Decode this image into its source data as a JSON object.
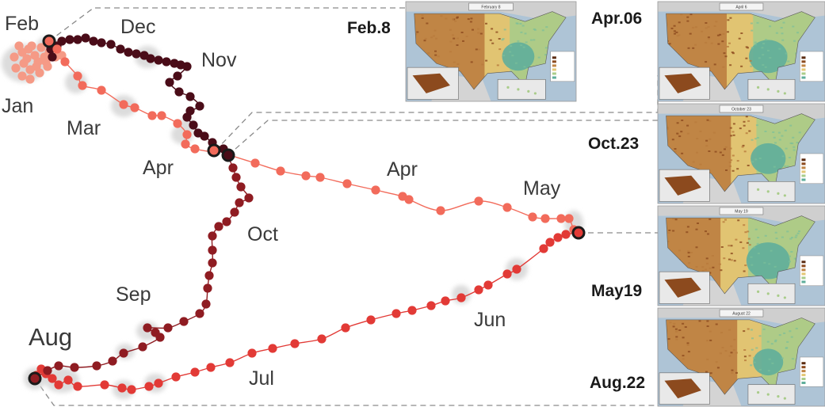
{
  "months": {
    "feb": "Feb",
    "dec": "Dec",
    "nov": "Nov",
    "jan": "Jan",
    "mar": "Mar",
    "apr_left": "Apr",
    "apr_right": "Apr",
    "may": "May",
    "oct": "Oct",
    "sep": "Sep",
    "aug": "Aug",
    "jun": "Jun",
    "jul": "Jul"
  },
  "snapshots": [
    {
      "date_label": "Feb.8",
      "map_title": "February 8"
    },
    {
      "date_label": "Apr.06",
      "map_title": "April 6"
    },
    {
      "date_label": "Oct.23",
      "map_title": "October 23"
    },
    {
      "date_label": "May19",
      "map_title": "May 19"
    },
    {
      "date_label": "Aug.22",
      "map_title": "August 22"
    }
  ],
  "colors": {
    "winter": "#4a0c18",
    "spring": "#f26b5b",
    "summer": "#e23a36",
    "fall": "#8f1c22",
    "jan_cluster": "#f59a86",
    "halo": "#dcdcdc",
    "map_dry_dark": "#8c4a1e",
    "map_dry": "#c08545",
    "map_mid": "#e3c775",
    "map_wet": "#a9cc8a",
    "map_wetter": "#5fae9b",
    "ocean": "#aec4d6"
  }
}
